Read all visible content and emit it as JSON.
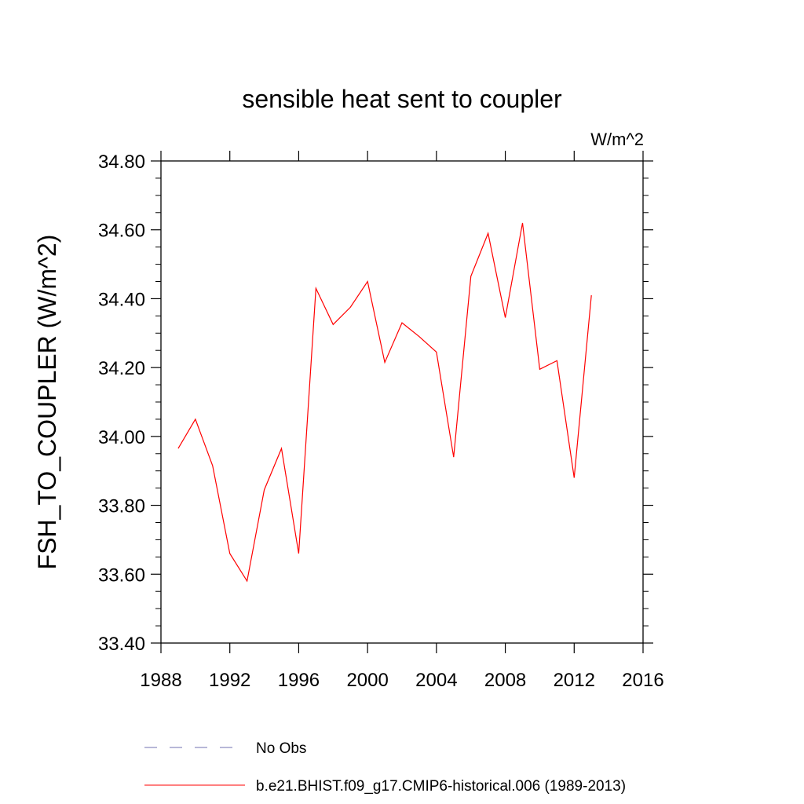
{
  "chart_data": {
    "type": "line",
    "title": "sensible heat sent to coupler",
    "units_label": "W/m^2",
    "ylabel": "FSH_TO_COUPLER  (W/m^2)",
    "xlabel": "",
    "xlim": [
      1988,
      2016
    ],
    "ylim": [
      33.4,
      34.8
    ],
    "x_ticks": [
      1988,
      1992,
      1996,
      2000,
      2004,
      2008,
      2012,
      2016
    ],
    "x_tick_labels": [
      "1988",
      "1992",
      "1996",
      "2000",
      "2004",
      "2008",
      "2012",
      "2016"
    ],
    "y_ticks": [
      33.4,
      33.6,
      33.8,
      34.0,
      34.2,
      34.4,
      34.6,
      34.8
    ],
    "y_tick_labels": [
      "33.40",
      "33.60",
      "33.80",
      "34.00",
      "34.20",
      "34.40",
      "34.60",
      "34.80"
    ],
    "grid": false,
    "legend_placement": "bottom",
    "series": [
      {
        "name": "b.e21.BHIST.f09_g17.CMIP6-historical.006 (1989-2013)",
        "color": "#ff0000",
        "style": "solid",
        "x": [
          1989,
          1990,
          1991,
          1992,
          1993,
          1994,
          1995,
          1996,
          1997,
          1998,
          1999,
          2000,
          2001,
          2002,
          2003,
          2004,
          2005,
          2006,
          2007,
          2008,
          2009,
          2010,
          2011,
          2012,
          2013
        ],
        "values": [
          33.965,
          34.05,
          33.915,
          33.66,
          33.58,
          33.845,
          33.965,
          33.66,
          34.43,
          34.325,
          34.375,
          34.45,
          34.215,
          34.33,
          34.29,
          34.245,
          33.94,
          34.465,
          34.59,
          34.345,
          34.62,
          34.195,
          34.22,
          33.88,
          34.41
        ]
      }
    ],
    "legend": [
      {
        "label": "No Obs",
        "color": "#7070b0",
        "style": "dashed"
      },
      {
        "label": "b.e21.BHIST.f09_g17.CMIP6-historical.006 (1989-2013)",
        "color": "#ff0000",
        "style": "solid"
      }
    ]
  }
}
